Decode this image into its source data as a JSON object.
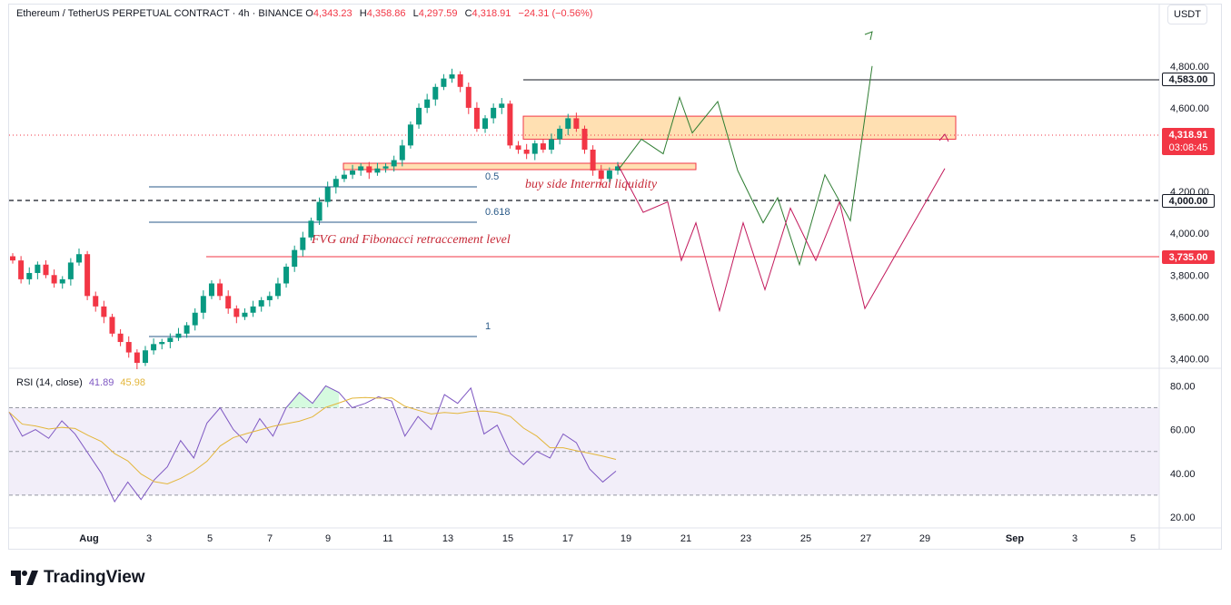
{
  "header": {
    "symbol": "Ethereum / TetherUS PERPETUAL CONTRACT · 4h · BINANCE",
    "open_label": "O",
    "open": "4,343.23",
    "high_label": "H",
    "high": "4,358.86",
    "low_label": "L",
    "low": "4,297.59",
    "close_label": "C",
    "close": "4,318.91",
    "change": "−24.31 (−0.56%)"
  },
  "currency": "USDT",
  "price_tags": {
    "resistance": "4,583.00",
    "current_price": "4,318.91",
    "countdown": "03:08:45",
    "level_4000": "4,000.00",
    "support": "3,735.00"
  },
  "rsi": {
    "label": "RSI (14, close)",
    "value": "41.89",
    "ma_value": "45.98",
    "axis_ticks": [
      "80.00",
      "60.00",
      "40.00",
      "20.00"
    ]
  },
  "brand": "TradingView",
  "colors": {
    "up": "#089981",
    "down": "#f23645",
    "rsi_line": "#7e57c2",
    "rsi_ma": "#e3b63b",
    "zone_fill": "#ffe0b2",
    "projection_up": "#2e7d32",
    "projection_down": "#c2185b",
    "fib": "#2a5a88"
  },
  "chart_data": {
    "type": "candlestick",
    "timeframe": "4h",
    "y_ticks": [
      3400,
      3600,
      3800,
      4000,
      4200,
      4400,
      4600,
      4800
    ],
    "y_tick_labels": [
      "3,400.00",
      "3,600.00",
      "3,800.00",
      "4,000.00",
      "4,200.00",
      "4,400.00",
      "4,600.00",
      "4,800.00"
    ],
    "ylim": [
      3300,
      4860
    ],
    "x_ticks": [
      "Aug",
      "3",
      "5",
      "7",
      "9",
      "11",
      "13",
      "15",
      "17",
      "19",
      "21",
      "23",
      "25",
      "27",
      "29",
      "Sep",
      "3",
      "5"
    ],
    "approx_closes": [
      3870,
      3780,
      3810,
      3850,
      3800,
      3760,
      3780,
      3860,
      3900,
      3700,
      3650,
      3600,
      3520,
      3480,
      3430,
      3380,
      3440,
      3470,
      3480,
      3500,
      3520,
      3560,
      3620,
      3700,
      3760,
      3700,
      3640,
      3600,
      3620,
      3650,
      3680,
      3700,
      3760,
      3840,
      3920,
      3980,
      4060,
      4150,
      4220,
      4260,
      4280,
      4300,
      4320,
      4290,
      4310,
      4320,
      4350,
      4420,
      4520,
      4600,
      4640,
      4700,
      4740,
      4760,
      4700,
      4600,
      4500,
      4550,
      4600,
      4620,
      4420,
      4400,
      4380,
      4430,
      4400,
      4450,
      4500,
      4550,
      4500,
      4400,
      4300,
      4260,
      4300,
      4320
    ],
    "horizontal_levels": [
      4583,
      4000,
      3735
    ],
    "zones": [
      {
        "label": "",
        "top": 4560,
        "bottom": 4450
      },
      {
        "label": "buy side Internal liquidity",
        "top": 4160,
        "bottom": 4130
      }
    ],
    "fibonacci": [
      {
        "label": "0.5",
        "price": 4060
      },
      {
        "label": "0.618",
        "price": 3910
      },
      {
        "label": "1",
        "price": 3365
      }
    ],
    "annotations": [
      "buy side Internal liquidity",
      "FVG and Fibonacci retraccement level"
    ],
    "projection_bullish": [
      4300,
      4450,
      4380,
      4650,
      4480,
      4630,
      4300,
      4050,
      4170,
      3850,
      4280,
      4060,
      4800
    ],
    "projection_bearish": [
      4330,
      4100,
      4150,
      3870,
      4050,
      3630,
      4050,
      3730,
      4120,
      3870,
      4150,
      3640,
      4310
    ],
    "rsi_series": [
      68,
      57,
      60,
      56,
      64,
      58,
      49,
      40,
      27,
      36,
      28,
      37,
      43,
      55,
      47,
      63,
      70,
      60,
      54,
      65,
      57,
      70,
      77,
      72,
      80,
      77,
      70,
      72,
      75,
      73,
      57,
      66,
      60,
      76,
      72,
      79,
      58,
      62,
      49,
      44,
      50,
      47,
      58,
      54,
      42,
      36,
      41
    ],
    "rsi_levels": [
      70,
      50,
      30
    ]
  }
}
